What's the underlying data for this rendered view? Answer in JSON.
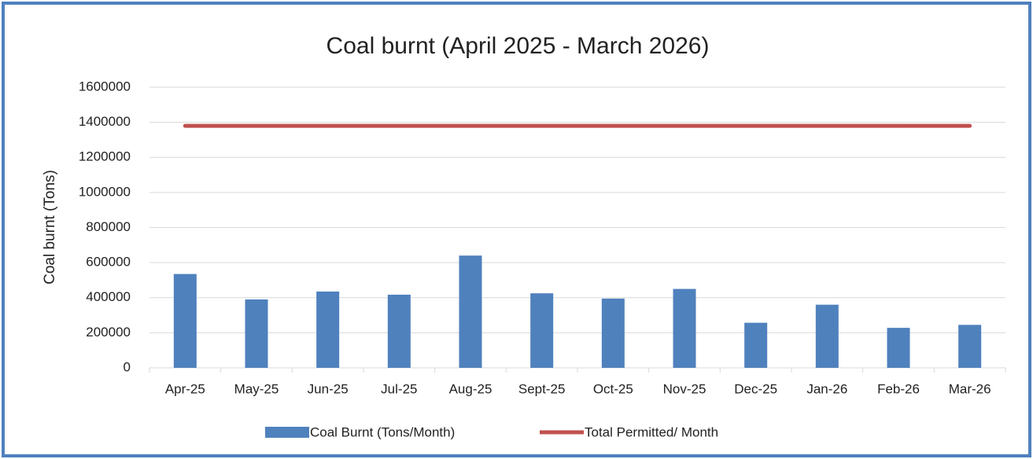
{
  "chart_data": {
    "type": "bar_line",
    "title": "Coal burnt (April 2025 - March 2026)",
    "y_label": "Coal burnt (Tons)",
    "categories": [
      "Apr-25",
      "May-25",
      "Jun-25",
      "Jul-25",
      "Aug-25",
      "Sept-25",
      "Oct-25",
      "Nov-25",
      "Dec-25",
      "Jan-26",
      "Feb-26",
      "Mar-26"
    ],
    "series": [
      {
        "name": "Coal Burnt (Tons/Month)",
        "type": "bar",
        "color": "#4f81bd",
        "values": [
          535000,
          390000,
          435000,
          417000,
          640000,
          425000,
          395000,
          450000,
          257000,
          360000,
          228000,
          245000
        ]
      },
      {
        "name": "Total  Permitted/ Month",
        "type": "line",
        "color": "#c0504d",
        "values": [
          1380000,
          1380000,
          1380000,
          1380000,
          1380000,
          1380000,
          1380000,
          1380000,
          1380000,
          1380000,
          1380000,
          1380000
        ]
      }
    ],
    "ylim": [
      0,
      1600000
    ],
    "yticks": [
      0,
      200000,
      400000,
      600000,
      800000,
      1000000,
      1200000,
      1400000,
      1600000
    ],
    "grid": true
  }
}
